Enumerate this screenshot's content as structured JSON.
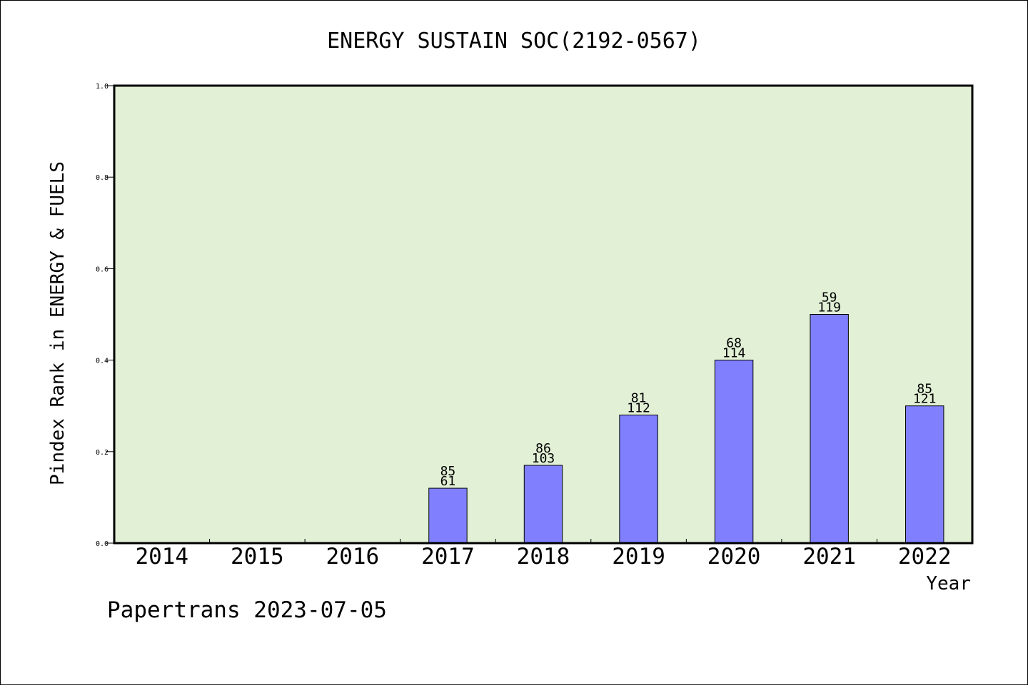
{
  "chart_data": {
    "type": "bar",
    "title": "ENERGY SUSTAIN SOC(2192-0567)",
    "xlabel": "Year",
    "ylabel": "Pindex Rank in ENERGY & FUELS",
    "categories": [
      "2014",
      "2015",
      "2016",
      "2017",
      "2018",
      "2019",
      "2020",
      "2021",
      "2022"
    ],
    "values": [
      null,
      null,
      null,
      0.12,
      0.17,
      0.28,
      0.4,
      0.5,
      0.3
    ],
    "bar_labels_top": [
      "",
      "",
      "",
      "85",
      "86",
      "81",
      "68",
      "59",
      "85"
    ],
    "bar_labels_bottom": [
      "",
      "",
      "",
      "61",
      "103",
      "112",
      "114",
      "119",
      "121"
    ],
    "ylim": [
      0,
      1
    ],
    "yticks": [
      "0.0",
      "0.2",
      "0.4",
      "0.6",
      "0.8",
      "1.0"
    ],
    "grid": false,
    "plot_background": "#e2f0d6",
    "bar_color": "#8080ff",
    "footer": "Papertrans 2023-07-05"
  }
}
